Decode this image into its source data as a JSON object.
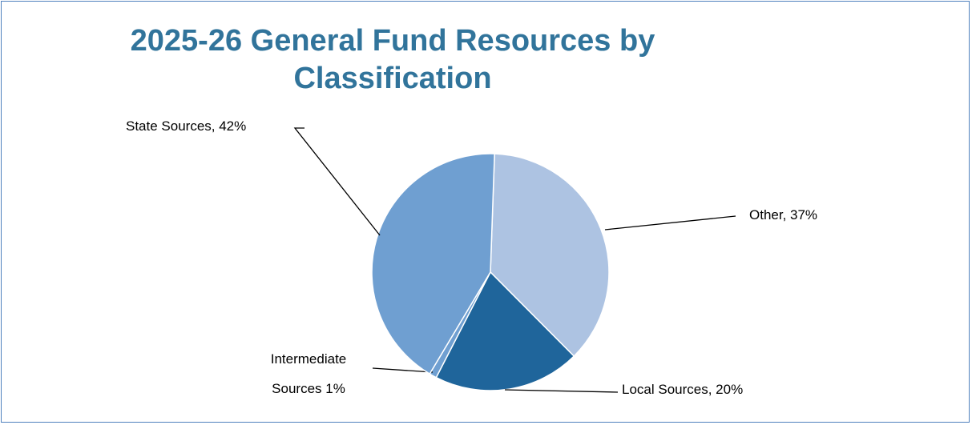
{
  "chart_data": {
    "type": "pie",
    "title": "2025-26 General Fund Resources by Classification",
    "values": [
      37,
      20,
      1,
      42
    ],
    "value_labels": [
      "Other, 37%",
      "Local Sources, 20%",
      "Intermediate Sources 1%",
      "State Sources, 42%"
    ],
    "colors": [
      "#adc3e2",
      "#1f659b",
      "#6f9fd1",
      "#6f9fd1"
    ]
  }
}
